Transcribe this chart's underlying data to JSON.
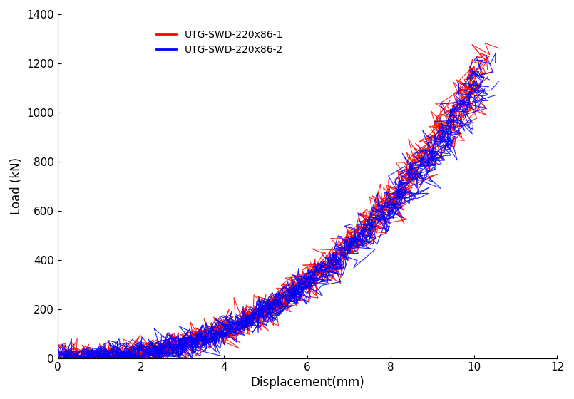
{
  "title": "",
  "xlabel": "Displacement(mm)",
  "ylabel": "Load (kN)",
  "xlim": [
    0,
    12
  ],
  "ylim": [
    0,
    1400
  ],
  "xticks": [
    0,
    2,
    4,
    6,
    8,
    10,
    12
  ],
  "yticks": [
    0,
    200,
    400,
    600,
    800,
    1000,
    1200,
    1400
  ],
  "legend": [
    {
      "label": "UTG-SWD-220x86-1",
      "color": "#FF0000"
    },
    {
      "label": "UTG-SWD-220x86-2",
      "color": "#0000FF"
    }
  ],
  "num_cycles": 3,
  "max_disp": 10.3,
  "noise_scale": 0.12,
  "load_noise_scale": 18,
  "curve_power": 2.5,
  "max_load_1": 1270,
  "max_load_2": 1220,
  "spread_factor": 0.18,
  "num_points": 400
}
